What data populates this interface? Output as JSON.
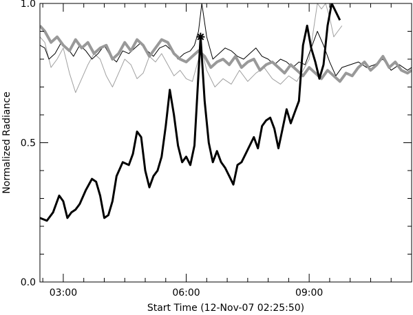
{
  "chart_data": {
    "type": "line",
    "title": "",
    "xlabel": "Start Time (12-Nov-07 02:25:50)",
    "ylabel": "Normalized Radiance",
    "x_unit": "hours",
    "xlim": [
      2.43,
      11.5
    ],
    "ylim": [
      0.0,
      1.0
    ],
    "x_ticks": [
      {
        "value": 3,
        "label": "03:00"
      },
      {
        "value": 6,
        "label": "06:00"
      },
      {
        "value": 9,
        "label": "09:00"
      }
    ],
    "y_ticks": [
      {
        "value": 0.0,
        "label": "0.0"
      },
      {
        "value": 0.5,
        "label": "0.5"
      },
      {
        "value": 1.0,
        "label": "1.0"
      }
    ],
    "grid": false,
    "marker": {
      "symbol": "asterisk",
      "x": 6.35,
      "y": 0.88
    },
    "series": [
      {
        "style": "thick-black",
        "color": "#000000",
        "width": 3,
        "x": [
          2.43,
          2.6,
          2.75,
          2.9,
          3.0,
          3.1,
          3.2,
          3.3,
          3.4,
          3.55,
          3.7,
          3.8,
          3.9,
          4.0,
          4.1,
          4.2,
          4.3,
          4.45,
          4.6,
          4.7,
          4.8,
          4.9,
          5.0,
          5.1,
          5.2,
          5.3,
          5.4,
          5.5,
          5.6,
          5.7,
          5.8,
          5.9,
          6.0,
          6.1,
          6.2,
          6.3,
          6.35,
          6.45,
          6.55,
          6.65,
          6.75,
          6.85,
          6.95,
          7.05,
          7.15,
          7.25,
          7.35,
          7.45,
          7.55,
          7.65,
          7.75,
          7.85,
          7.95,
          8.05,
          8.15,
          8.25,
          8.35,
          8.45,
          8.55,
          8.65,
          8.75,
          8.85,
          8.95,
          9.05,
          9.15,
          9.25,
          9.35,
          9.45,
          9.55,
          9.65,
          9.75
        ],
        "y": [
          0.23,
          0.22,
          0.25,
          0.31,
          0.29,
          0.23,
          0.25,
          0.26,
          0.28,
          0.33,
          0.37,
          0.36,
          0.31,
          0.23,
          0.24,
          0.29,
          0.38,
          0.43,
          0.42,
          0.46,
          0.54,
          0.52,
          0.4,
          0.34,
          0.38,
          0.4,
          0.45,
          0.56,
          0.69,
          0.6,
          0.49,
          0.43,
          0.45,
          0.42,
          0.49,
          0.75,
          0.88,
          0.65,
          0.5,
          0.43,
          0.47,
          0.43,
          0.41,
          0.38,
          0.35,
          0.42,
          0.43,
          0.46,
          0.49,
          0.52,
          0.48,
          0.56,
          0.58,
          0.59,
          0.55,
          0.48,
          0.55,
          0.62,
          0.57,
          0.61,
          0.65,
          0.85,
          0.92,
          0.84,
          0.79,
          0.73,
          0.78,
          0.92,
          1.0,
          0.97,
          0.94
        ]
      },
      {
        "style": "thin-black",
        "color": "#000000",
        "width": 1,
        "x": [
          2.43,
          2.55,
          2.65,
          2.8,
          2.95,
          3.1,
          3.25,
          3.4,
          3.55,
          3.7,
          3.85,
          4.0,
          4.15,
          4.3,
          4.45,
          4.6,
          4.75,
          4.9,
          5.05,
          5.2,
          5.35,
          5.5,
          5.65,
          5.8,
          5.95,
          6.1,
          6.2,
          6.3,
          6.38,
          6.5,
          6.65,
          6.8,
          6.95,
          7.1,
          7.25,
          7.4,
          7.55,
          7.7,
          7.85,
          8.0,
          8.15,
          8.3,
          8.45,
          8.6,
          8.75,
          8.9,
          9.05,
          9.2,
          9.35,
          9.5,
          9.65,
          9.8,
          10.0,
          10.2,
          10.4,
          10.6,
          10.8,
          11.0,
          11.2,
          11.4,
          11.5
        ],
        "y": [
          0.85,
          0.84,
          0.8,
          0.82,
          0.86,
          0.84,
          0.81,
          0.85,
          0.83,
          0.8,
          0.82,
          0.85,
          0.81,
          0.79,
          0.83,
          0.82,
          0.84,
          0.86,
          0.83,
          0.81,
          0.84,
          0.85,
          0.83,
          0.8,
          0.82,
          0.83,
          0.85,
          0.9,
          1.0,
          0.88,
          0.8,
          0.82,
          0.84,
          0.83,
          0.81,
          0.8,
          0.82,
          0.84,
          0.81,
          0.8,
          0.78,
          0.8,
          0.79,
          0.77,
          0.79,
          0.78,
          0.84,
          0.9,
          0.85,
          0.79,
          0.74,
          0.77,
          0.78,
          0.79,
          0.77,
          0.78,
          0.8,
          0.76,
          0.78,
          0.76,
          0.77
        ]
      },
      {
        "style": "thin-gray",
        "color": "#a0a0a0",
        "width": 1,
        "x": [
          2.43,
          2.55,
          2.7,
          2.85,
          3.0,
          3.15,
          3.3,
          3.45,
          3.6,
          3.75,
          3.9,
          4.05,
          4.2,
          4.35,
          4.5,
          4.65,
          4.8,
          4.95,
          5.1,
          5.25,
          5.4,
          5.55,
          5.7,
          5.85,
          6.0,
          6.15,
          6.3,
          6.38,
          6.5,
          6.7,
          6.9,
          7.1,
          7.3,
          7.5,
          7.7,
          7.9,
          8.1,
          8.3,
          8.5,
          8.7,
          8.85,
          9.0,
          9.1,
          9.2,
          9.3,
          9.4,
          9.5,
          9.6,
          9.7,
          9.8
        ],
        "y": [
          0.88,
          0.86,
          0.77,
          0.8,
          0.84,
          0.75,
          0.68,
          0.73,
          0.78,
          0.82,
          0.8,
          0.74,
          0.7,
          0.75,
          0.8,
          0.78,
          0.73,
          0.75,
          0.81,
          0.79,
          0.82,
          0.78,
          0.74,
          0.76,
          0.73,
          0.72,
          0.8,
          0.83,
          0.76,
          0.7,
          0.73,
          0.71,
          0.76,
          0.72,
          0.75,
          0.77,
          0.73,
          0.71,
          0.74,
          0.72,
          0.76,
          0.8,
          0.9,
          1.0,
          0.98,
          1.0,
          0.95,
          0.88,
          0.9,
          0.92
        ]
      },
      {
        "style": "thick-gray",
        "color": "#999999",
        "width": 4,
        "x": [
          2.43,
          2.55,
          2.7,
          2.85,
          3.0,
          3.15,
          3.3,
          3.45,
          3.6,
          3.75,
          3.9,
          4.05,
          4.2,
          4.35,
          4.5,
          4.65,
          4.8,
          4.95,
          5.1,
          5.25,
          5.4,
          5.55,
          5.7,
          5.85,
          6.0,
          6.15,
          6.3,
          6.45,
          6.6,
          6.75,
          6.9,
          7.05,
          7.2,
          7.35,
          7.5,
          7.65,
          7.8,
          7.95,
          8.1,
          8.25,
          8.4,
          8.55,
          8.7,
          8.85,
          9.0,
          9.15,
          9.3,
          9.45,
          9.6,
          9.75,
          9.9,
          10.05,
          10.2,
          10.35,
          10.5,
          10.65,
          10.8,
          10.95,
          11.1,
          11.25,
          11.4,
          11.5
        ],
        "y": [
          0.92,
          0.9,
          0.86,
          0.88,
          0.85,
          0.83,
          0.87,
          0.84,
          0.86,
          0.82,
          0.84,
          0.85,
          0.8,
          0.82,
          0.86,
          0.83,
          0.87,
          0.85,
          0.81,
          0.84,
          0.87,
          0.86,
          0.82,
          0.8,
          0.79,
          0.81,
          0.83,
          0.81,
          0.77,
          0.79,
          0.8,
          0.78,
          0.81,
          0.77,
          0.79,
          0.8,
          0.76,
          0.78,
          0.79,
          0.77,
          0.75,
          0.78,
          0.76,
          0.74,
          0.77,
          0.75,
          0.73,
          0.76,
          0.74,
          0.72,
          0.75,
          0.74,
          0.77,
          0.79,
          0.76,
          0.78,
          0.81,
          0.77,
          0.79,
          0.76,
          0.75,
          0.76
        ]
      }
    ]
  }
}
